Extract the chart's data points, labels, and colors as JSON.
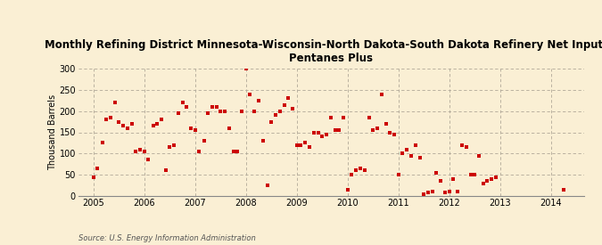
{
  "title": "Monthly Refining District Minnesota-Wisconsin-North Dakota-South Dakota Refinery Net Input of\nPentanes Plus",
  "ylabel": "Thousand Barrels",
  "source": "Source: U.S. Energy Information Administration",
  "background_color": "#faefd4",
  "marker_color": "#cc0000",
  "ylim": [
    0,
    300
  ],
  "yticks": [
    0,
    50,
    100,
    150,
    200,
    250,
    300
  ],
  "data_points": [
    [
      2005.0,
      45
    ],
    [
      2005.08,
      65
    ],
    [
      2005.17,
      125
    ],
    [
      2005.25,
      180
    ],
    [
      2005.33,
      185
    ],
    [
      2005.42,
      220
    ],
    [
      2005.5,
      175
    ],
    [
      2005.58,
      165
    ],
    [
      2005.67,
      160
    ],
    [
      2005.75,
      170
    ],
    [
      2005.83,
      105
    ],
    [
      2005.92,
      110
    ],
    [
      2006.0,
      105
    ],
    [
      2006.08,
      85
    ],
    [
      2006.17,
      165
    ],
    [
      2006.25,
      170
    ],
    [
      2006.33,
      180
    ],
    [
      2006.42,
      60
    ],
    [
      2006.5,
      115
    ],
    [
      2006.58,
      120
    ],
    [
      2006.67,
      195
    ],
    [
      2006.75,
      220
    ],
    [
      2006.83,
      210
    ],
    [
      2006.92,
      160
    ],
    [
      2007.0,
      155
    ],
    [
      2007.08,
      105
    ],
    [
      2007.17,
      130
    ],
    [
      2007.25,
      195
    ],
    [
      2007.33,
      210
    ],
    [
      2007.42,
      210
    ],
    [
      2007.5,
      200
    ],
    [
      2007.58,
      200
    ],
    [
      2007.67,
      160
    ],
    [
      2007.75,
      105
    ],
    [
      2007.83,
      105
    ],
    [
      2007.92,
      200
    ],
    [
      2008.0,
      300
    ],
    [
      2008.08,
      240
    ],
    [
      2008.17,
      200
    ],
    [
      2008.25,
      225
    ],
    [
      2008.33,
      130
    ],
    [
      2008.42,
      25
    ],
    [
      2008.5,
      175
    ],
    [
      2008.58,
      190
    ],
    [
      2008.67,
      200
    ],
    [
      2008.75,
      215
    ],
    [
      2008.83,
      230
    ],
    [
      2008.92,
      205
    ],
    [
      2009.0,
      120
    ],
    [
      2009.08,
      120
    ],
    [
      2009.17,
      125
    ],
    [
      2009.25,
      115
    ],
    [
      2009.33,
      150
    ],
    [
      2009.42,
      150
    ],
    [
      2009.5,
      140
    ],
    [
      2009.58,
      145
    ],
    [
      2009.67,
      185
    ],
    [
      2009.75,
      155
    ],
    [
      2009.83,
      155
    ],
    [
      2009.92,
      185
    ],
    [
      2010.0,
      15
    ],
    [
      2010.08,
      50
    ],
    [
      2010.17,
      60
    ],
    [
      2010.25,
      65
    ],
    [
      2010.33,
      60
    ],
    [
      2010.42,
      185
    ],
    [
      2010.5,
      155
    ],
    [
      2010.58,
      160
    ],
    [
      2010.67,
      240
    ],
    [
      2010.75,
      170
    ],
    [
      2010.83,
      150
    ],
    [
      2010.92,
      145
    ],
    [
      2011.0,
      50
    ],
    [
      2011.08,
      100
    ],
    [
      2011.17,
      110
    ],
    [
      2011.25,
      95
    ],
    [
      2011.33,
      120
    ],
    [
      2011.42,
      90
    ],
    [
      2011.5,
      5
    ],
    [
      2011.58,
      8
    ],
    [
      2011.67,
      10
    ],
    [
      2011.75,
      55
    ],
    [
      2011.83,
      35
    ],
    [
      2011.92,
      8
    ],
    [
      2012.0,
      10
    ],
    [
      2012.08,
      40
    ],
    [
      2012.17,
      10
    ],
    [
      2012.25,
      120
    ],
    [
      2012.33,
      115
    ],
    [
      2012.42,
      50
    ],
    [
      2012.5,
      50
    ],
    [
      2012.58,
      95
    ],
    [
      2012.67,
      30
    ],
    [
      2012.75,
      35
    ],
    [
      2012.83,
      40
    ],
    [
      2012.92,
      45
    ],
    [
      2014.25,
      15
    ]
  ],
  "xlim": [
    2004.7,
    2014.65
  ],
  "xtick_years": [
    2005,
    2006,
    2007,
    2008,
    2009,
    2010,
    2011,
    2012,
    2013,
    2014
  ]
}
